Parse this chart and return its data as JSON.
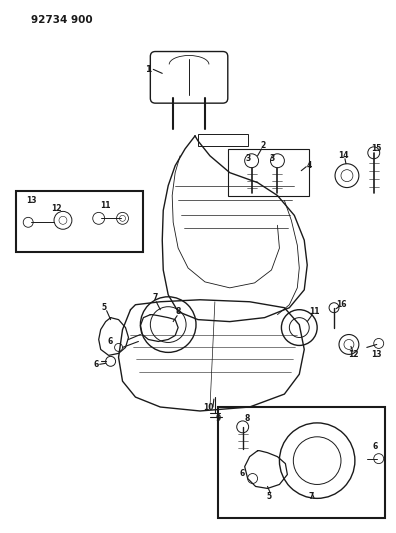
{
  "title": "92734 900",
  "bg": "#ffffff",
  "lc": "#1a1a1a",
  "fig_w": 3.96,
  "fig_h": 5.33,
  "dpi": 100
}
